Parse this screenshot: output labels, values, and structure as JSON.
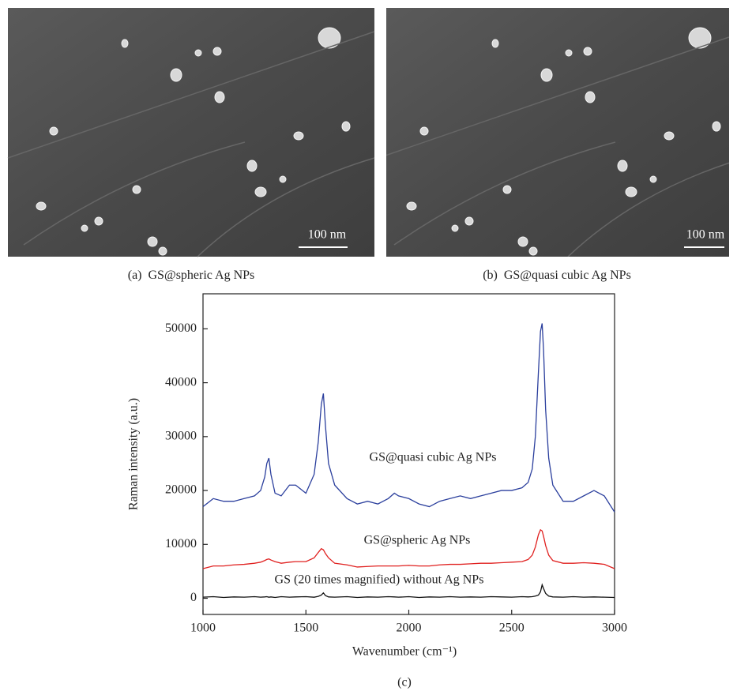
{
  "panels": [
    {
      "label": "(a)",
      "caption": "GS@spheric Ag NPs",
      "scale_bar": "100 nm"
    },
    {
      "label": "(b)",
      "caption": "GS@quasi cubic Ag NPs",
      "scale_bar": "100 nm"
    }
  ],
  "chart_data": {
    "type": "line",
    "panel_label": "(c)",
    "x_label": "Wavenumber (cm⁻¹)",
    "y_label": "Raman intensity (a.u.)",
    "xlim": [
      1000,
      3000
    ],
    "xticks": [
      1000,
      1500,
      2000,
      2500,
      3000
    ],
    "ylim": [
      -3000,
      56500
    ],
    "yticks": [
      0,
      10000,
      20000,
      30000,
      40000,
      50000
    ],
    "x": [
      1000,
      1050,
      1100,
      1150,
      1200,
      1250,
      1280,
      1300,
      1310,
      1320,
      1330,
      1350,
      1380,
      1420,
      1450,
      1500,
      1540,
      1560,
      1575,
      1585,
      1595,
      1610,
      1640,
      1700,
      1750,
      1800,
      1850,
      1900,
      1930,
      1950,
      2000,
      2050,
      2100,
      2150,
      2200,
      2250,
      2300,
      2350,
      2400,
      2450,
      2500,
      2550,
      2580,
      2600,
      2615,
      2630,
      2640,
      2648,
      2655,
      2665,
      2680,
      2700,
      2750,
      2800,
      2850,
      2900,
      2950,
      3000
    ],
    "series": [
      {
        "name": "GS@quasi cubic Ag NPs",
        "color": "#2b3f9d",
        "values": [
          17000,
          18500,
          18000,
          18000,
          18500,
          19000,
          20000,
          22500,
          25000,
          26000,
          23000,
          19500,
          19000,
          21000,
          21000,
          19500,
          23000,
          29000,
          36000,
          38000,
          32000,
          25000,
          21000,
          18500,
          17500,
          18000,
          17500,
          18500,
          19500,
          19000,
          18500,
          17500,
          17000,
          18000,
          18500,
          19000,
          18500,
          19000,
          19500,
          20000,
          20000,
          20500,
          21500,
          24000,
          30000,
          42000,
          49500,
          51000,
          46000,
          35000,
          26000,
          21000,
          18000,
          18000,
          19000,
          20000,
          19000,
          16000
        ]
      },
      {
        "name": "GS@spheric Ag NPs",
        "color": "#e0201f",
        "values": [
          5500,
          6000,
          6000,
          6200,
          6300,
          6500,
          6700,
          7000,
          7200,
          7300,
          7100,
          6800,
          6500,
          6700,
          6800,
          6800,
          7500,
          8500,
          9200,
          9000,
          8300,
          7500,
          6500,
          6200,
          5800,
          5900,
          6000,
          6000,
          6000,
          6000,
          6100,
          6000,
          6000,
          6200,
          6300,
          6300,
          6400,
          6500,
          6500,
          6600,
          6700,
          6800,
          7200,
          8000,
          9500,
          11800,
          12700,
          12500,
          11500,
          9800,
          8000,
          7000,
          6500,
          6500,
          6600,
          6500,
          6300,
          5500
        ]
      },
      {
        "name": "GS (20 times magnified) without Ag NPs",
        "color": "#111111",
        "values": [
          200,
          300,
          150,
          250,
          200,
          300,
          200,
          250,
          300,
          200,
          250,
          150,
          300,
          200,
          250,
          300,
          200,
          350,
          600,
          1000,
          500,
          250,
          200,
          300,
          150,
          250,
          200,
          300,
          250,
          200,
          300,
          150,
          250,
          200,
          300,
          200,
          250,
          200,
          300,
          250,
          200,
          300,
          250,
          300,
          400,
          600,
          1200,
          2500,
          1800,
          900,
          400,
          250,
          200,
          300,
          200,
          250,
          200,
          150
        ]
      }
    ]
  }
}
